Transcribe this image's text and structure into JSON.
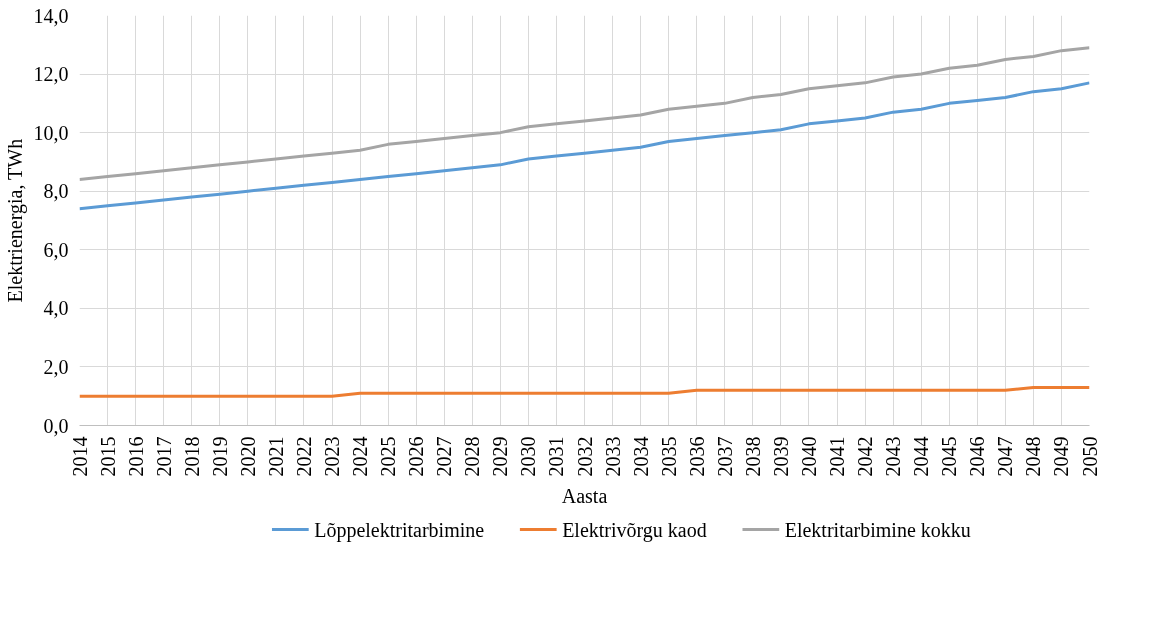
{
  "chart_data": {
    "type": "line",
    "xlabel": "Aasta",
    "ylabel": "Elektrienergia, TWh",
    "categories": [
      "2014",
      "2015",
      "2016",
      "2017",
      "2018",
      "2019",
      "2020",
      "2021",
      "2022",
      "2023",
      "2024",
      "2025",
      "2026",
      "2027",
      "2028",
      "2029",
      "2030",
      "2031",
      "2032",
      "2033",
      "2034",
      "2035",
      "2036",
      "2037",
      "2038",
      "2039",
      "2040",
      "2041",
      "2042",
      "2043",
      "2044",
      "2045",
      "2046",
      "2047",
      "2048",
      "2049",
      "2050"
    ],
    "ylim": [
      0,
      14
    ],
    "yticks": [
      {
        "value": 0,
        "label": "0,0"
      },
      {
        "value": 2,
        "label": "2,0"
      },
      {
        "value": 4,
        "label": "4,0"
      },
      {
        "value": 6,
        "label": "6,0"
      },
      {
        "value": 8,
        "label": "8,0"
      },
      {
        "value": 10,
        "label": "10,0"
      },
      {
        "value": 12,
        "label": "12,0"
      },
      {
        "value": 14,
        "label": "14,0"
      }
    ],
    "grid": true,
    "legend": "bottom",
    "marker": "none",
    "line_style": "solid",
    "series": [
      {
        "name": "Lõppelektritarbimine",
        "color": "#5b9bd5",
        "values": [
          7.4,
          7.5,
          7.6,
          7.7,
          7.8,
          7.9,
          8.0,
          8.1,
          8.2,
          8.3,
          8.4,
          8.5,
          8.6,
          8.7,
          8.8,
          8.9,
          9.1,
          9.2,
          9.3,
          9.4,
          9.5,
          9.7,
          9.8,
          9.9,
          10.0,
          10.1,
          10.3,
          10.4,
          10.5,
          10.7,
          10.8,
          11.0,
          11.1,
          11.2,
          11.4,
          11.5,
          11.7
        ]
      },
      {
        "name": "Elektrivõrgu kaod",
        "color": "#ed7d31",
        "values": [
          1.0,
          1.0,
          1.0,
          1.0,
          1.0,
          1.0,
          1.0,
          1.0,
          1.0,
          1.0,
          1.1,
          1.1,
          1.1,
          1.1,
          1.1,
          1.1,
          1.1,
          1.1,
          1.1,
          1.1,
          1.1,
          1.1,
          1.2,
          1.2,
          1.2,
          1.2,
          1.2,
          1.2,
          1.2,
          1.2,
          1.2,
          1.2,
          1.2,
          1.2,
          1.3,
          1.3,
          1.3
        ]
      },
      {
        "name": "Elektritarbimine kokku",
        "color": "#a5a5a5",
        "values": [
          8.4,
          8.5,
          8.6,
          8.7,
          8.8,
          8.9,
          9.0,
          9.1,
          9.2,
          9.3,
          9.4,
          9.6,
          9.7,
          9.8,
          9.9,
          10.0,
          10.2,
          10.3,
          10.4,
          10.5,
          10.6,
          10.8,
          10.9,
          11.0,
          11.2,
          11.3,
          11.5,
          11.6,
          11.7,
          11.9,
          12.0,
          12.2,
          12.3,
          12.5,
          12.6,
          12.8,
          12.9
        ]
      }
    ]
  }
}
